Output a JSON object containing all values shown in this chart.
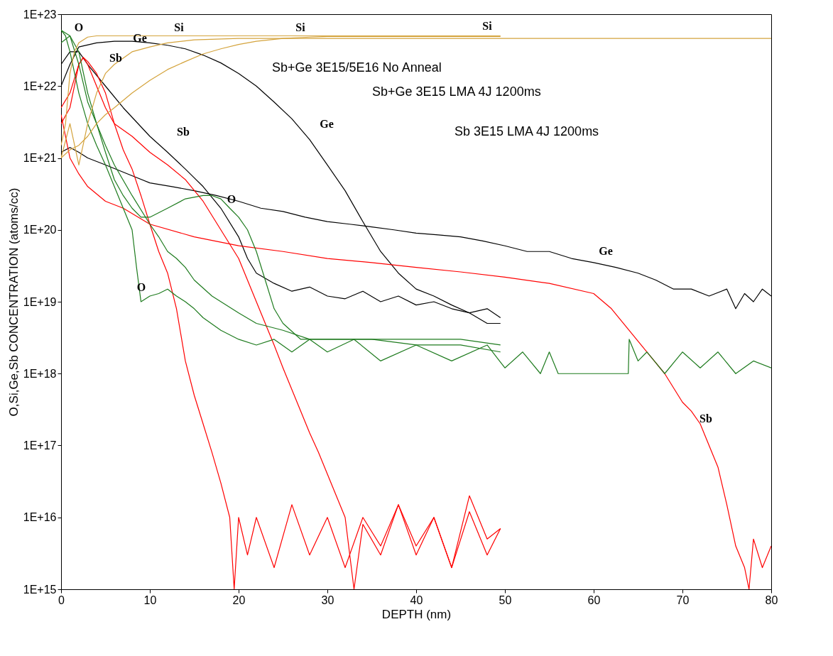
{
  "chart_data": {
    "type": "line",
    "xlabel": "DEPTH (nm)",
    "ylabel": "O,Si,Ge,Sb CONCENTRATION (atoms/cc)",
    "log": "y",
    "grid": false,
    "marker": "none",
    "line_style": "solid",
    "xlim": [
      0,
      80
    ],
    "xticks": [
      0,
      10,
      20,
      30,
      40,
      50,
      60,
      70,
      80
    ],
    "ylim": [
      1000000000000000.0,
      1e+23
    ],
    "yticks": [
      {
        "value": 1000000000000000.0,
        "label": "1E+15"
      },
      {
        "value": 1e+16,
        "label": "1E+16"
      },
      {
        "value": 1e+17,
        "label": "1E+17"
      },
      {
        "value": 1e+18,
        "label": "1E+18"
      },
      {
        "value": 1e+19,
        "label": "1E+19"
      },
      {
        "value": 1e+20,
        "label": "1E+20"
      },
      {
        "value": 1e+21,
        "label": "1E+21"
      },
      {
        "value": 1e+22,
        "label": "1E+22"
      },
      {
        "value": 1e+23,
        "label": "1E+23"
      }
    ],
    "series": [
      {
        "color": "#000000",
        "x": [
          0,
          1,
          2,
          3,
          5,
          7.5,
          10,
          12.5,
          15,
          17.5,
          20,
          22.5,
          25,
          27.5,
          30,
          32.5,
          35,
          37.5,
          40,
          42.5,
          45,
          47.5,
          50,
          52.5,
          55,
          57.5,
          60,
          62.5,
          65,
          67,
          69,
          71,
          73,
          75,
          76,
          77,
          78,
          79,
          80
        ],
        "values": [
          1.2e+21,
          1.4e+21,
          1.2e+21,
          1e+21,
          8e+20,
          6e+20,
          4.5e+20,
          4e+20,
          3.5e+20,
          3e+20,
          2.5e+20,
          2e+20,
          1.8e+20,
          1.5e+20,
          1.3e+20,
          1.2e+20,
          1.1e+20,
          1e+20,
          9e+19,
          8.5e+19,
          8e+19,
          7e+19,
          6e+19,
          5e+19,
          5e+19,
          4e+19,
          3.5e+19,
          3e+19,
          2.5e+19,
          2e+19,
          1.5e+19,
          1.5e+19,
          1.2e+19,
          1.5e+19,
          8e+18,
          1.3e+19,
          1e+19,
          1.5e+19,
          1.2e+19
        ]
      },
      {
        "color": "#000000",
        "x": [
          0,
          1,
          2,
          4,
          6,
          8,
          10,
          12,
          14,
          16,
          18,
          20,
          22,
          24,
          26,
          28,
          30,
          32,
          34,
          36,
          38,
          40,
          42,
          44,
          46,
          48,
          49.5
        ],
        "values": [
          1e+22,
          2e+22,
          3.5e+22,
          4e+22,
          4.2e+22,
          4.2e+22,
          4e+22,
          3.7e+22,
          3.3e+22,
          2.7e+22,
          2.1e+22,
          1.5e+22,
          1e+22,
          6e+21,
          3.5e+21,
          1.8e+21,
          8e+20,
          3.5e+20,
          1.3e+20,
          5e+19,
          2.5e+19,
          1.5e+19,
          1.2e+19,
          9e+18,
          7e+18,
          5e+18,
          5e+18
        ]
      },
      {
        "color": "#000000",
        "x": [
          0,
          1,
          2,
          3,
          5,
          7,
          10,
          12,
          14,
          16,
          18,
          20,
          21,
          22,
          24,
          26,
          28,
          30,
          32,
          34,
          36,
          38,
          40,
          42,
          44,
          46,
          48,
          49.5
        ],
        "values": [
          2e+22,
          3e+22,
          3e+22,
          2e+22,
          1e+22,
          5e+21,
          2e+21,
          1.2e+21,
          7e+20,
          4e+20,
          2e+20,
          8e+19,
          4e+19,
          2.5e+19,
          1.8e+19,
          1.4e+19,
          1.6e+19,
          1.2e+19,
          1.1e+19,
          1.4e+19,
          1e+19,
          1.2e+19,
          9e+18,
          1e+19,
          8e+18,
          7e+18,
          8e+18,
          6e+18
        ]
      },
      {
        "color": "#ff0000",
        "x": [
          0,
          1,
          2,
          2.5,
          3,
          4,
          5,
          6,
          7,
          8,
          9,
          10,
          11,
          12,
          13,
          14,
          15,
          16,
          17,
          18,
          19,
          19.5,
          20,
          21,
          22,
          24,
          26,
          28,
          30,
          32,
          34,
          36,
          38,
          40,
          42,
          44,
          46,
          48,
          49.5
        ],
        "values": [
          5e+21,
          8e+21,
          2e+22,
          2.5e+22,
          2.2e+22,
          1.5e+22,
          8e+21,
          3e+21,
          1.3e+21,
          7e+20,
          3e+20,
          1.2e+20,
          5e+19,
          2.5e+19,
          8e+18,
          1.5e+18,
          5e+17,
          2e+17,
          8e+16,
          3e+16,
          1e+16,
          1000000000000000.0,
          1e+16,
          3000000000000000.0,
          1e+16,
          2000000000000000.0,
          1.5e+16,
          3000000000000000.0,
          1e+16,
          2000000000000000.0,
          1e+16,
          4000000000000000.0,
          1.5e+16,
          3000000000000000.0,
          1e+16,
          2000000000000000.0,
          2e+16,
          5000000000000000.0,
          7000000000000000.0
        ]
      },
      {
        "color": "#ff0000",
        "x": [
          0,
          1,
          2,
          2.5,
          3,
          4,
          5,
          6,
          8,
          10,
          12,
          14,
          16,
          18,
          20,
          21,
          22,
          23,
          24,
          25,
          26,
          27,
          28,
          29,
          30,
          31,
          32,
          33,
          34,
          36,
          38,
          40,
          42,
          44,
          46,
          48,
          49.5
        ],
        "values": [
          3e+21,
          5e+21,
          2e+22,
          2.5e+22,
          2e+22,
          1e+22,
          5e+21,
          3e+21,
          2e+21,
          1.2e+21,
          8e+20,
          5e+20,
          2.5e+20,
          1e+20,
          4e+19,
          2e+19,
          1e+19,
          5e+18,
          2.5e+18,
          1.2e+18,
          6e+17,
          3e+17,
          1.5e+17,
          8e+16,
          4e+16,
          2e+16,
          1e+16,
          1000000000000000.0,
          8000000000000000.0,
          3000000000000000.0,
          1.5e+16,
          4000000000000000.0,
          1e+16,
          2000000000000000.0,
          1.2e+16,
          3000000000000000.0,
          7000000000000000.0
        ]
      },
      {
        "color": "#ff0000",
        "x": [
          0,
          0.5,
          1,
          2,
          3,
          5,
          7,
          10,
          15,
          20,
          25,
          30,
          35,
          40,
          45,
          50,
          55,
          60,
          62,
          64,
          66,
          68,
          70,
          71,
          72,
          73,
          74,
          75,
          76,
          77,
          77.5,
          78,
          79,
          80
        ],
        "values": [
          4e+21,
          2e+21,
          1e+21,
          6e+20,
          4e+20,
          2.5e+20,
          2e+20,
          1.2e+20,
          8e+19,
          6e+19,
          5e+19,
          4e+19,
          3.5e+19,
          3e+19,
          2.6e+19,
          2.2e+19,
          1.8e+19,
          1.3e+19,
          8e+18,
          4e+18,
          2e+18,
          1e+18,
          4e+17,
          3e+17,
          2e+17,
          1e+17,
          5e+16,
          1.5e+16,
          4000000000000000.0,
          2000000000000000.0,
          1000000000000000.0,
          5000000000000000.0,
          2000000000000000.0,
          4000000000000000.0
        ]
      },
      {
        "color": "#1e7b1e",
        "x": [
          0,
          0.5,
          1,
          2,
          3,
          4,
          5,
          6,
          7,
          8,
          8.5,
          9,
          10,
          11,
          12,
          13,
          14,
          15,
          16,
          18,
          20,
          22,
          24,
          26,
          28,
          30,
          33,
          36,
          40,
          44,
          48,
          50,
          52,
          54,
          55,
          56,
          60,
          63.9,
          64,
          65,
          66,
          68,
          70,
          72,
          74,
          76,
          78,
          80
        ],
        "values": [
          6e+22,
          5e+22,
          3e+22,
          8e+21,
          3e+21,
          1.5e+21,
          8e+20,
          4e+20,
          2e+20,
          1e+20,
          3e+19,
          1e+19,
          1.2e+19,
          1.3e+19,
          1.5e+19,
          1.2e+19,
          1e+19,
          8e+18,
          6e+18,
          4e+18,
          3e+18,
          2.5e+18,
          3e+18,
          2e+18,
          3e+18,
          2e+18,
          3e+18,
          1.5e+18,
          2.5e+18,
          1.5e+18,
          2.5e+18,
          1.2e+18,
          2e+18,
          1e+18,
          2e+18,
          1e+18,
          1e+18,
          1e+18,
          3e+18,
          1.5e+18,
          2e+18,
          1e+18,
          2e+18,
          1.2e+18,
          2e+18,
          1e+18,
          1.5e+18,
          1.2e+18
        ]
      },
      {
        "color": "#1e7b1e",
        "x": [
          0,
          1,
          2,
          3,
          4,
          5,
          6,
          8,
          10,
          11,
          12,
          13,
          14,
          15,
          17,
          20,
          22,
          25,
          28,
          30,
          35,
          40,
          45,
          49.5
        ],
        "values": [
          6e+22,
          5e+22,
          2e+22,
          6e+21,
          3e+21,
          1.5e+21,
          8e+20,
          3e+20,
          1.2e+20,
          8e+19,
          5e+19,
          4e+19,
          3e+19,
          2e+19,
          1.2e+19,
          7e+18,
          5e+18,
          4e+18,
          3e+18,
          3e+18,
          3e+18,
          3e+18,
          3e+18,
          2.5e+18
        ]
      },
      {
        "color": "#1e7b1e",
        "x": [
          0,
          1,
          2,
          3,
          4,
          5,
          6,
          7,
          8,
          9,
          10,
          12,
          14,
          16,
          17,
          18,
          19,
          20,
          21,
          22,
          23,
          24,
          25,
          27,
          30,
          35,
          40,
          45,
          49.5
        ],
        "values": [
          4e+22,
          5e+22,
          3e+22,
          8e+21,
          3e+21,
          1.2e+21,
          5e+20,
          3e+20,
          2e+20,
          1.5e+20,
          1.5e+20,
          2e+20,
          2.7e+20,
          3e+20,
          3e+20,
          2.7e+20,
          2e+20,
          1.5e+20,
          1e+20,
          5e+19,
          2e+19,
          8e+18,
          5e+18,
          3e+18,
          3e+18,
          3e+18,
          2.5e+18,
          2.5e+18,
          2e+18
        ]
      },
      {
        "color": "#d4a33c",
        "x": [
          0,
          1,
          2,
          3,
          4,
          5,
          6,
          8,
          10,
          12,
          15,
          20,
          30,
          40,
          50,
          60,
          70,
          80
        ],
        "values": [
          1e+21,
          3e+21,
          8e+20,
          3e+21,
          8e+21,
          1.5e+22,
          2e+22,
          3e+22,
          3.5e+22,
          4e+22,
          4.4e+22,
          4.6e+22,
          4.6e+22,
          4.6e+22,
          4.6e+22,
          4.6e+22,
          4.6e+22,
          4.6e+22
        ]
      },
      {
        "color": "#d4a33c",
        "x": [
          0,
          1,
          2,
          3,
          4,
          5,
          6,
          8,
          10,
          12,
          14,
          16,
          18,
          20,
          22,
          25,
          28,
          30,
          35,
          40,
          49.5
        ],
        "values": [
          1e+21,
          1.3e+21,
          1.5e+21,
          2e+21,
          3e+21,
          4e+21,
          5e+21,
          8e+21,
          1.2e+22,
          1.7e+22,
          2.2e+22,
          2.8e+22,
          3.3e+22,
          3.8e+22,
          4.2e+22,
          4.6e+22,
          4.8e+22,
          4.9e+22,
          4.9e+22,
          4.9e+22,
          4.9e+22
        ]
      },
      {
        "color": "#d4a33c",
        "x": [
          0,
          0.5,
          1,
          1.5,
          2,
          3,
          4,
          6,
          10,
          20,
          30,
          40,
          49.5
        ],
        "values": [
          1.5e+21,
          3e+21,
          1.5e+22,
          3e+22,
          4e+22,
          4.8e+22,
          5e+22,
          5e+22,
          5e+22,
          5e+22,
          5e+22,
          5e+22,
          5e+22
        ]
      }
    ],
    "annotations": [
      "O",
      "Ge",
      "Si",
      "Si",
      "Si",
      "Sb",
      "Sb",
      "Ge",
      "O",
      "O",
      "Ge",
      "Sb",
      "Sb+Ge 3E15/5E16 No Anneal",
      "Sb+Ge 3E15 LMA 4J 1200ms",
      "Sb 3E15 LMA 4J 1200ms"
    ]
  }
}
